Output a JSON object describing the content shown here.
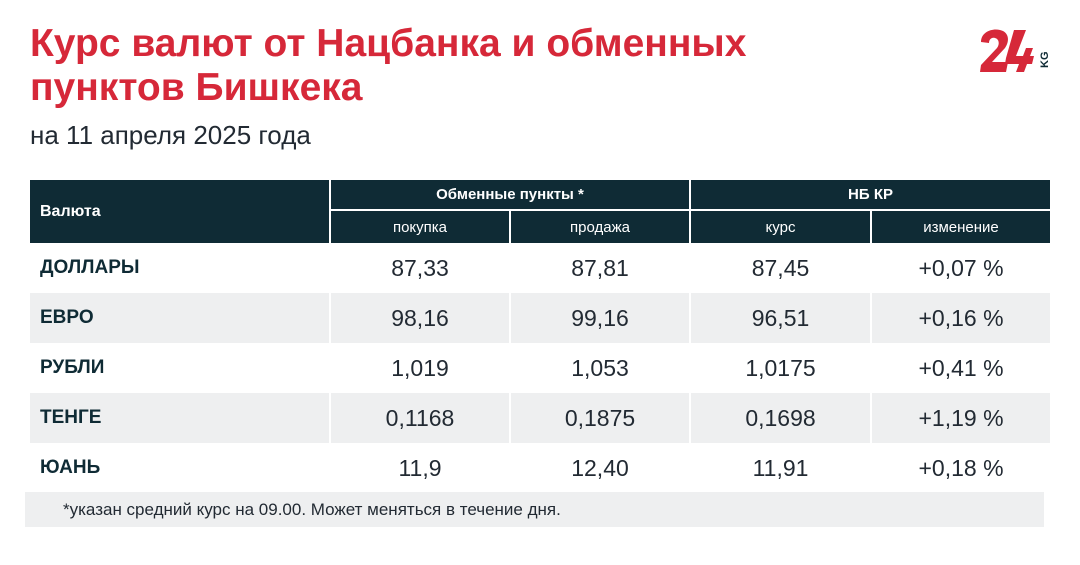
{
  "header": {
    "title": "Курс валют от Нацбанка и обменных пунктов Бишкека",
    "subtitle": "на 11 апреля 2025 года",
    "logo_text": "24 KG"
  },
  "colors": {
    "accent": "#d62839",
    "header_bg": "#0f2b35",
    "row_alt_bg": "#eeeff0"
  },
  "table": {
    "col_currency": "Валюта",
    "group_exchange": "Обменные пункты *",
    "group_nbkr": "НБ КР",
    "sub_buy": "покупка",
    "sub_sell": "продажа",
    "sub_rate": "курс",
    "sub_change": "изменение",
    "rows": [
      {
        "currency": "ДОЛЛАРЫ",
        "buy": "87,33",
        "sell": "87,81",
        "rate": "87,45",
        "change": "+0,07 %"
      },
      {
        "currency": "ЕВРО",
        "buy": "98,16",
        "sell": "99,16",
        "rate": "96,51",
        "change": "+0,16 %"
      },
      {
        "currency": "РУБЛИ",
        "buy": "1,019",
        "sell": "1,053",
        "rate": "1,0175",
        "change": "+0,41 %"
      },
      {
        "currency": "ТЕНГЕ",
        "buy": "0,1168",
        "sell": "0,1875",
        "rate": "0,1698",
        "change": "+1,19 %"
      },
      {
        "currency": "ЮАНЬ",
        "buy": "11,9",
        "sell": "12,40",
        "rate": "11,91",
        "change": "+0,18 %"
      }
    ]
  },
  "footnote": "*указан средний курс на 09.00. Может меняться в течение дня."
}
